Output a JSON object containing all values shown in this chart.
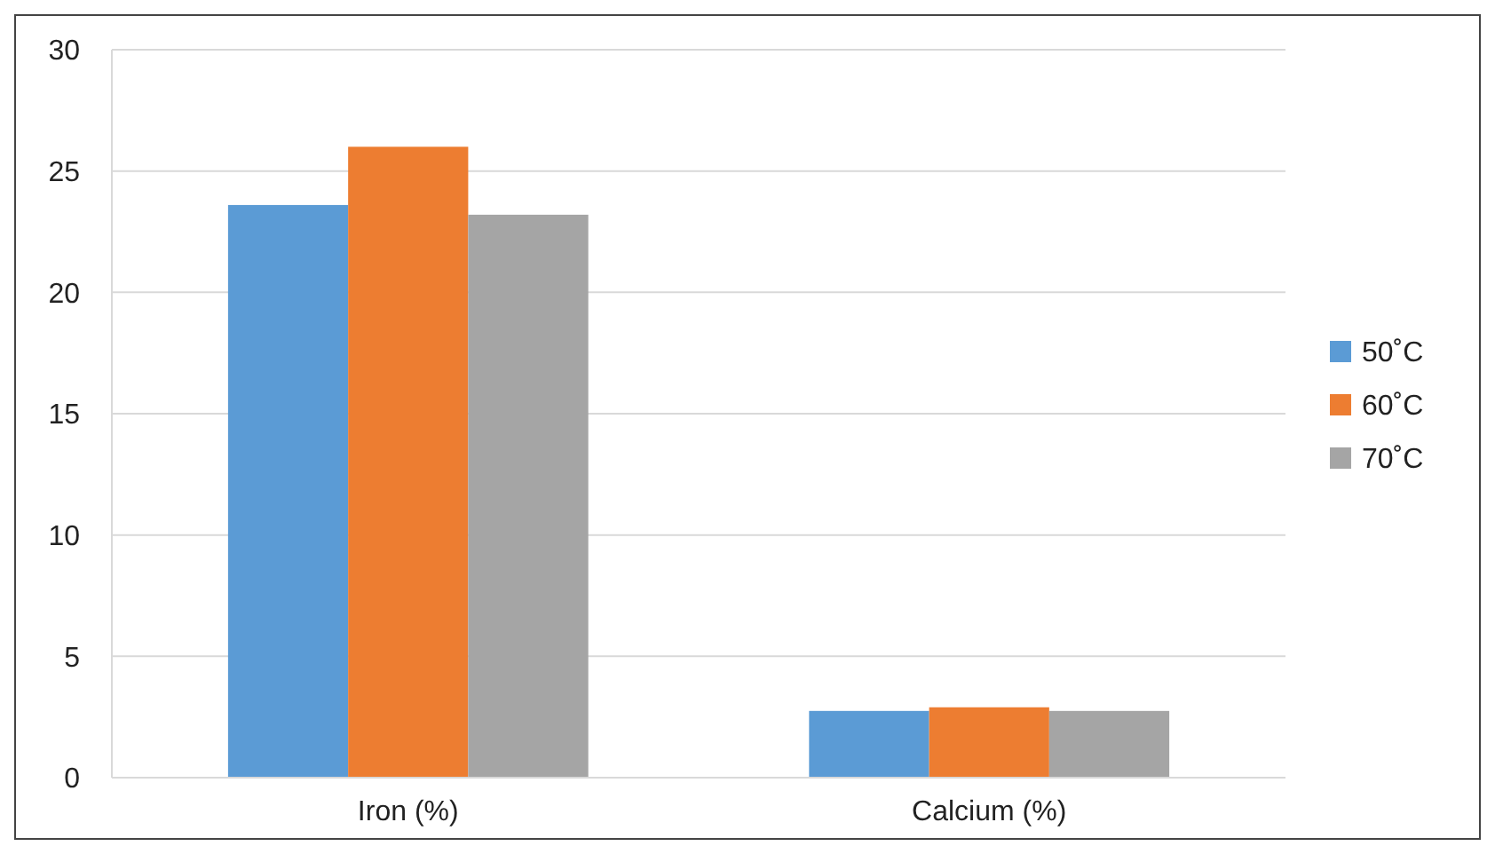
{
  "chart_data": {
    "type": "bar",
    "categories": [
      "Iron (%)",
      "Calcium (%)"
    ],
    "series": [
      {
        "name": "50˚C",
        "color": "#5b9bd5",
        "values": [
          23.6,
          2.75
        ]
      },
      {
        "name": "60˚C",
        "color": "#ed7d31",
        "values": [
          26.0,
          2.9
        ]
      },
      {
        "name": "70˚C",
        "color": "#a5a5a5",
        "values": [
          23.2,
          2.75
        ]
      }
    ],
    "ylim": [
      0,
      30
    ],
    "yticks": [
      0,
      5,
      10,
      15,
      20,
      25,
      30
    ],
    "grid": "y",
    "legend": "right"
  }
}
